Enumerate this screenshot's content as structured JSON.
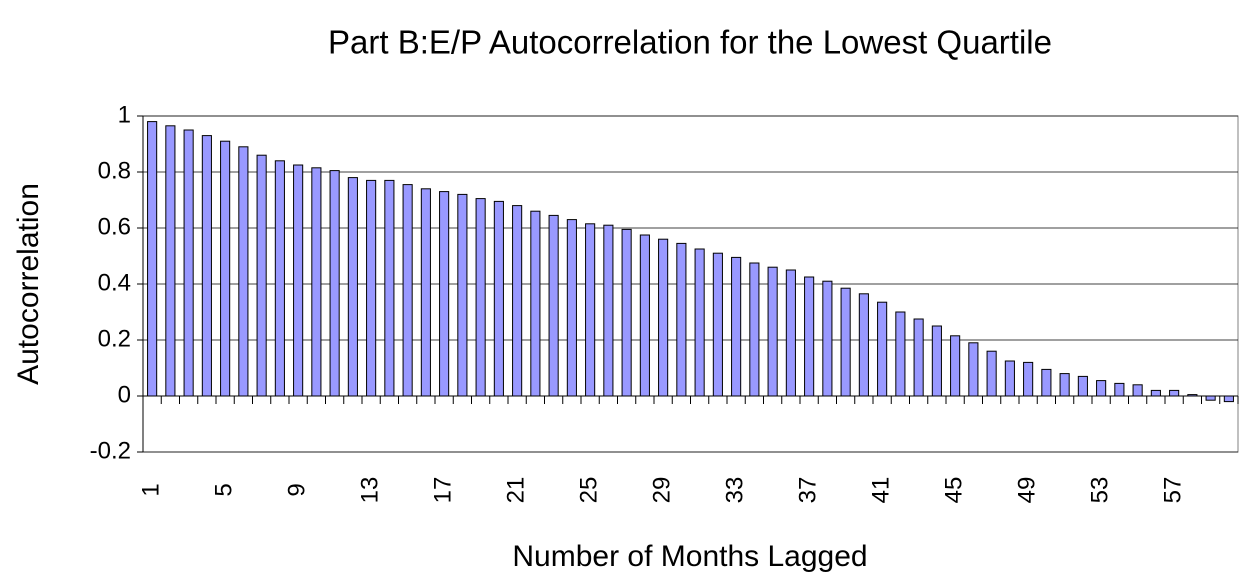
{
  "chart_data": {
    "type": "bar",
    "title": "Part B:E/P Autocorrelation for the Lowest Quartile",
    "xlabel": "Number of Months Lagged",
    "ylabel": "Autocorrelation",
    "categories": [
      "1",
      null,
      null,
      null,
      "5",
      null,
      null,
      null,
      "9",
      null,
      null,
      null,
      "13",
      null,
      null,
      null,
      "17",
      null,
      null,
      null,
      "21",
      null,
      null,
      null,
      "25",
      null,
      null,
      null,
      "29",
      null,
      null,
      null,
      "33",
      null,
      null,
      null,
      "37",
      null,
      null,
      null,
      "41",
      null,
      null,
      null,
      "45",
      null,
      null,
      null,
      "49",
      null,
      null,
      null,
      "53",
      null,
      null,
      null,
      "57",
      null,
      null,
      null
    ],
    "values": [
      0.98,
      0.965,
      0.95,
      0.93,
      0.91,
      0.89,
      0.86,
      0.84,
      0.825,
      0.815,
      0.805,
      0.78,
      0.77,
      0.77,
      0.755,
      0.74,
      0.73,
      0.72,
      0.705,
      0.695,
      0.68,
      0.66,
      0.645,
      0.63,
      0.615,
      0.61,
      0.595,
      0.575,
      0.56,
      0.545,
      0.525,
      0.51,
      0.495,
      0.475,
      0.46,
      0.45,
      0.425,
      0.41,
      0.385,
      0.365,
      0.335,
      0.3,
      0.275,
      0.25,
      0.215,
      0.19,
      0.16,
      0.125,
      0.12,
      0.095,
      0.08,
      0.07,
      0.055,
      0.045,
      0.04,
      0.02,
      0.02,
      0.005,
      -0.015,
      -0.02
    ],
    "color": "#9999ff",
    "ylim": [
      -0.2,
      1
    ],
    "yticks": [
      -0.2,
      0,
      0.2,
      0.4,
      0.6,
      0.8,
      1
    ],
    "grid": true
  }
}
